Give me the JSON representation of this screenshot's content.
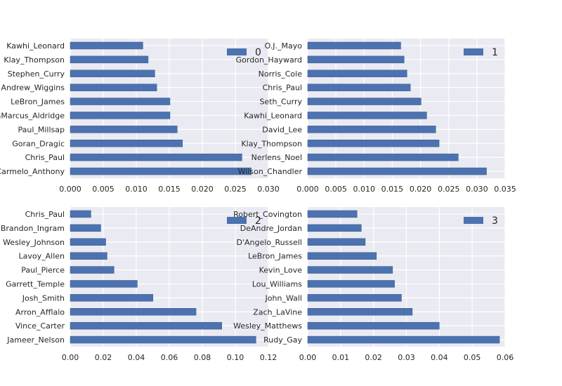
{
  "chart_data": [
    {
      "type": "bar",
      "orientation": "horizontal",
      "legend": "0",
      "legend_position": "upper right",
      "grid": true,
      "background": "#EAEAF2",
      "bar_color": "#4C72B0",
      "xlim": [
        0,
        0.03
      ],
      "xticks": [
        "0.000",
        "0.005",
        "0.010",
        "0.015",
        "0.020",
        "0.025",
        "0.030"
      ],
      "categories": [
        "Carmelo_Anthony",
        "Chris_Paul",
        "Goran_Dragic",
        "Paul_Millsap",
        "LaMarcus_Aldridge",
        "LeBron_James",
        "Andrew_Wiggins",
        "Stephen_Curry",
        "Klay_Thompson",
        "Kawhi_Leonard"
      ],
      "values": [
        0.0274,
        0.026,
        0.017,
        0.0162,
        0.0151,
        0.0151,
        0.0131,
        0.0128,
        0.0118,
        0.011
      ]
    },
    {
      "type": "bar",
      "orientation": "horizontal",
      "legend": "1",
      "legend_position": "upper right",
      "grid": true,
      "background": "#EAEAF2",
      "bar_color": "#4C72B0",
      "xlim": [
        0,
        0.035
      ],
      "xticks": [
        "0.000",
        "0.005",
        "0.010",
        "0.015",
        "0.020",
        "0.025",
        "0.030",
        "0.035"
      ],
      "categories": [
        "Wilson_Chandler",
        "Nerlens_Noel",
        "Klay_Thompson",
        "David_Lee",
        "Kawhi_Leonard",
        "Seth_Curry",
        "Chris_Paul",
        "Norris_Cole",
        "Gordon_Hayward",
        "O.J._Mayo"
      ],
      "values": [
        0.0317,
        0.0267,
        0.0233,
        0.0227,
        0.0211,
        0.0201,
        0.0182,
        0.0176,
        0.0171,
        0.0165
      ]
    },
    {
      "type": "bar",
      "orientation": "horizontal",
      "legend": "2",
      "legend_position": "upper right",
      "grid": true,
      "background": "#EAEAF2",
      "bar_color": "#4C72B0",
      "xlim": [
        0,
        0.12
      ],
      "xticks": [
        "0.00",
        "0.02",
        "0.04",
        "0.06",
        "0.08",
        "0.10",
        "0.12"
      ],
      "categories": [
        "Jameer_Nelson",
        "Vince_Carter",
        "Arron_Afflalo",
        "Josh_Smith",
        "Garrett_Temple",
        "Paul_Pierce",
        "Lavoy_Allen",
        "Wesley_Johnson",
        "Brandon_Ingram",
        "Chris_Paul"
      ],
      "values": [
        0.1125,
        0.0918,
        0.0762,
        0.0501,
        0.0406,
        0.0265,
        0.0223,
        0.0215,
        0.0185,
        0.0125
      ]
    },
    {
      "type": "bar",
      "orientation": "horizontal",
      "legend": "3",
      "legend_position": "upper right",
      "grid": true,
      "background": "#EAEAF2",
      "bar_color": "#4C72B0",
      "xlim": [
        0,
        0.06
      ],
      "xticks": [
        "0.00",
        "0.01",
        "0.02",
        "0.03",
        "0.04",
        "0.05",
        "0.06"
      ],
      "categories": [
        "Rudy_Gay",
        "Wesley_Matthews",
        "Zach_LaVine",
        "John_Wall",
        "Lou_Williams",
        "Kevin_Love",
        "LeBron_James",
        "D'Angelo_Russell",
        "DeAndre_Jordan",
        "Robert_Covington"
      ],
      "values": [
        0.0583,
        0.04,
        0.0318,
        0.0285,
        0.0264,
        0.0258,
        0.0209,
        0.0175,
        0.0163,
        0.015
      ]
    }
  ]
}
